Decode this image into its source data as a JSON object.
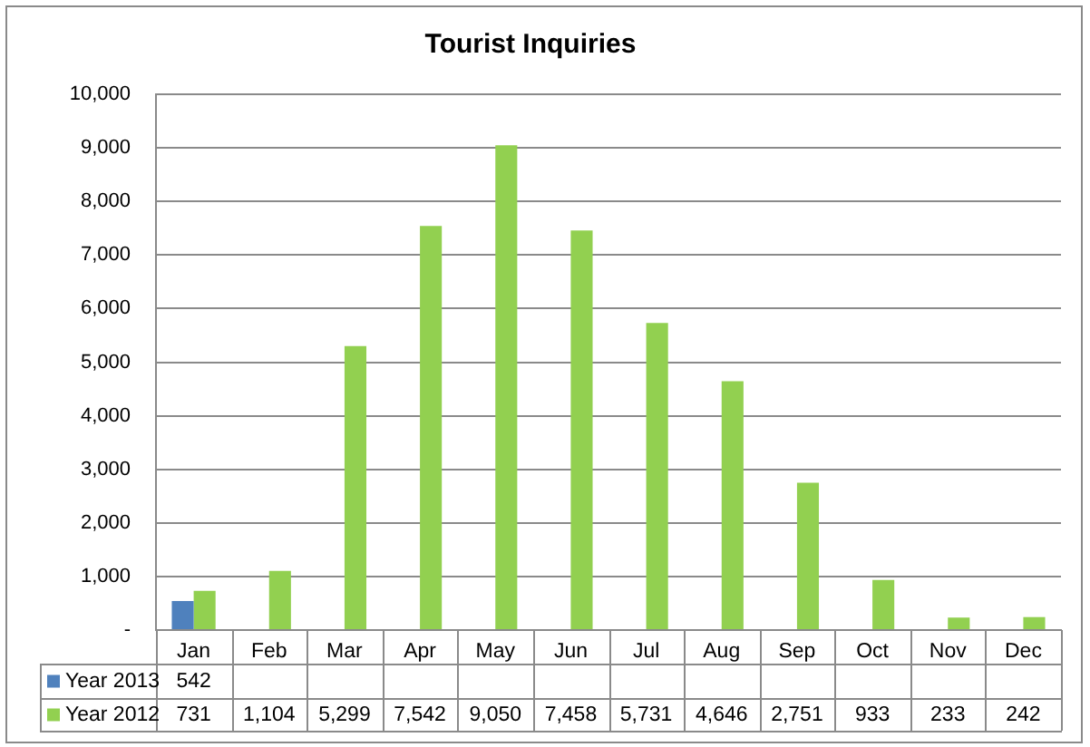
{
  "chart_data": {
    "type": "bar",
    "title": "Tourist Inquiries",
    "categories": [
      "Jan",
      "Feb",
      "Mar",
      "Apr",
      "May",
      "Jun",
      "Jul",
      "Aug",
      "Sep",
      "Oct",
      "Nov",
      "Dec"
    ],
    "series": [
      {
        "name": "Year 2013",
        "color": "#4f81bd",
        "values": [
          542,
          null,
          null,
          null,
          null,
          null,
          null,
          null,
          null,
          null,
          null,
          null
        ],
        "value_labels": [
          "542",
          null,
          null,
          null,
          null,
          null,
          null,
          null,
          null,
          null,
          null,
          null
        ]
      },
      {
        "name": "Year 2012",
        "color": "#92d050",
        "values": [
          731,
          1104,
          5299,
          7542,
          9050,
          7458,
          5731,
          4646,
          2751,
          933,
          233,
          242
        ],
        "value_labels": [
          "731",
          "1,104",
          "5,299",
          "7,542",
          "9,050",
          "7,458",
          "5,731",
          "4,646",
          "2,751",
          "933",
          "233",
          "242"
        ]
      }
    ],
    "ylim": [
      0,
      10000
    ],
    "yticks": [
      {
        "value": 0,
        "label": "-"
      },
      {
        "value": 1000,
        "label": "1,000"
      },
      {
        "value": 2000,
        "label": "2,000"
      },
      {
        "value": 3000,
        "label": "3,000"
      },
      {
        "value": 4000,
        "label": "4,000"
      },
      {
        "value": 5000,
        "label": "5,000"
      },
      {
        "value": 6000,
        "label": "6,000"
      },
      {
        "value": 7000,
        "label": "7,000"
      },
      {
        "value": 8000,
        "label": "8,000"
      },
      {
        "value": 9000,
        "label": "9,000"
      },
      {
        "value": 10000,
        "label": "10,000"
      }
    ],
    "grid": "y",
    "legend": "bottom left"
  }
}
